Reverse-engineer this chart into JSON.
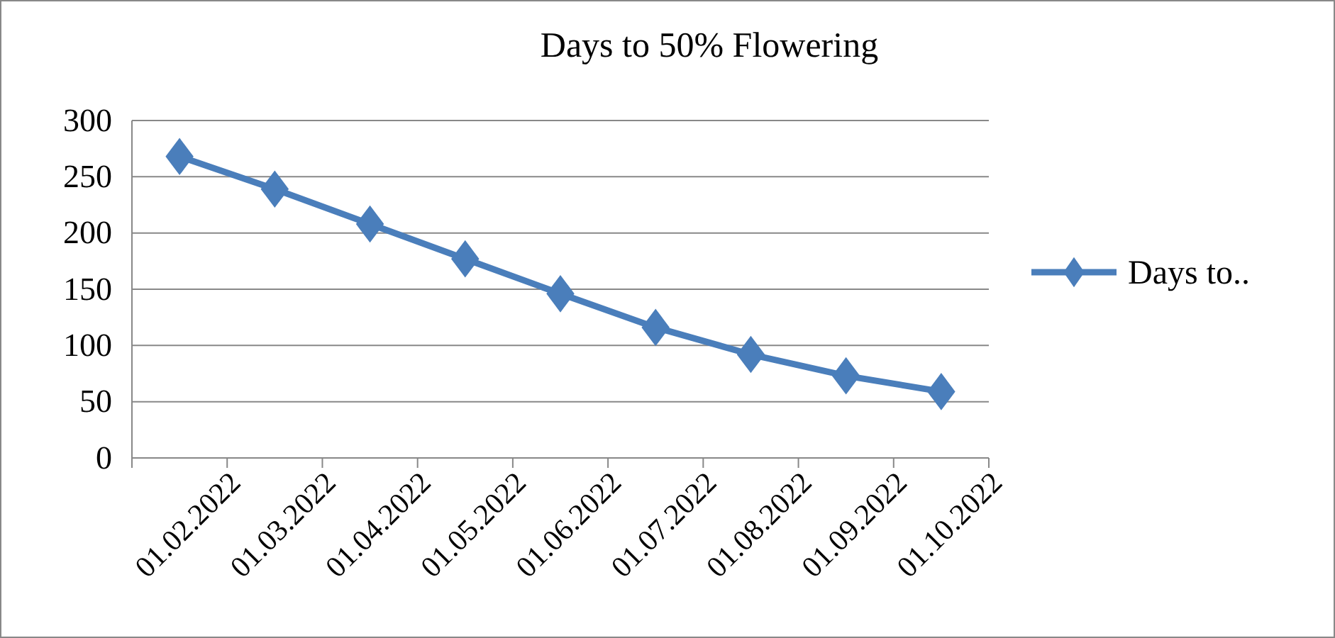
{
  "chart_data": {
    "type": "line",
    "title": "Days to 50% Flowering",
    "categories": [
      "01.02.2022",
      "01.03.2022",
      "01.04.2022",
      "01.05.2022",
      "01.06.2022",
      "01.07.2022",
      "01.08.2022",
      "01.09.2022",
      "01.10.2022"
    ],
    "series": [
      {
        "name": "Days to..",
        "color": "#4a7ebb",
        "values": [
          268,
          239,
          208,
          177,
          146,
          116,
          92,
          73,
          59
        ]
      }
    ],
    "ylim": [
      0,
      300
    ],
    "yticks": [
      0,
      50,
      100,
      150,
      200,
      250,
      300
    ],
    "grid": "y",
    "legend": "right",
    "marker": "diamond",
    "line_style": "solid"
  }
}
